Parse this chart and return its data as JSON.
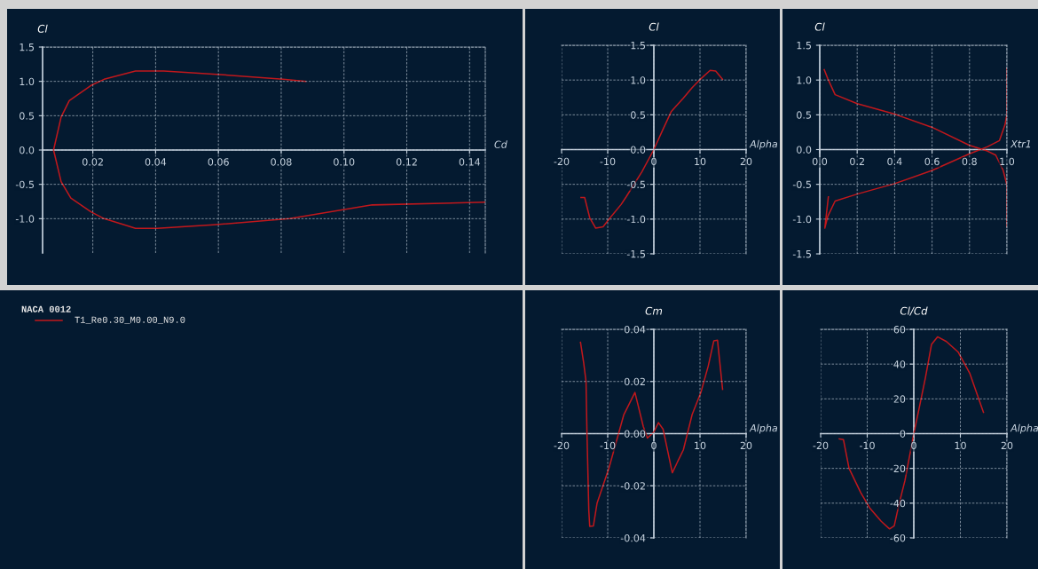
{
  "chart_data": [
    {
      "type": "line",
      "xlabel": "Cd",
      "ylabel": "Cl",
      "grid": true,
      "xlim": [
        0.004,
        0.145
      ],
      "ylim": [
        -1.5,
        1.5
      ],
      "xticks": [
        0.02,
        0.04,
        0.06,
        0.08,
        {
          "value": 0.1,
          "label": "0.10"
        },
        0.12,
        0.14
      ],
      "yticks": [
        {
          "value": -1,
          "label": "-1.0"
        },
        -0.5,
        {
          "value": 0,
          "label": "0.0"
        },
        0.5,
        {
          "value": 1,
          "label": "1.0"
        },
        1.5
      ],
      "series": [
        {
          "color": "#c0181c",
          "x": [
            0.145,
            0.109,
            0.0827,
            0.0584,
            0.0405,
            0.0336,
            0.0236,
            0.0194,
            0.013,
            0.0099,
            0.0075,
            0.0099,
            0.0125,
            0.0194,
            0.0236,
            0.0336,
            0.0426,
            0.0605,
            0.0806,
            0.0878
          ],
          "values": [
            -0.76,
            -0.8,
            -1.0,
            -1.09,
            -1.14,
            -1.14,
            -1.0,
            -0.9,
            -0.7,
            -0.46,
            0.0,
            0.48,
            0.72,
            0.94,
            1.03,
            1.15,
            1.15,
            1.1,
            1.03,
            1.0
          ]
        }
      ]
    },
    {
      "type": "line",
      "xlabel": "Alpha",
      "ylabel": "Cl",
      "grid": true,
      "xlim": [
        -20,
        20
      ],
      "ylim": [
        -1.5,
        1.5
      ],
      "xticks": [
        -20,
        -10,
        0,
        10,
        20
      ],
      "yticks": [
        -1.5,
        {
          "value": -1,
          "label": "-1.0"
        },
        -0.5,
        {
          "value": 0,
          "label": "0.0"
        },
        0.5,
        {
          "value": 1,
          "label": "1.0"
        },
        1.5
      ],
      "series": [
        {
          "color": "#c0181c",
          "x": [
            -15.8,
            -15.0,
            -13.9,
            -12.6,
            -11.0,
            -9.7,
            -7.1,
            -6.0,
            -2.6,
            0,
            1.9,
            3.8,
            6.4,
            8.3,
            9.9,
            12.2,
            13.4,
            14.9
          ],
          "values": [
            -0.69,
            -0.69,
            -0.98,
            -1.13,
            -1.11,
            -1.0,
            -0.79,
            -0.68,
            -0.32,
            0.0,
            0.28,
            0.55,
            0.74,
            0.89,
            1.0,
            1.14,
            1.13,
            1.01
          ]
        }
      ]
    },
    {
      "type": "line",
      "xlabel": "Xtr1",
      "ylabel": "Cl",
      "grid": true,
      "xlim": [
        0.0,
        1.0
      ],
      "ylim": [
        -1.5,
        1.5
      ],
      "xticks": [
        {
          "value": 0,
          "label": "0.0"
        },
        0.2,
        0.4,
        0.6,
        0.8,
        {
          "value": 1,
          "label": "1.0"
        }
      ],
      "yticks": [
        -1.5,
        {
          "value": -1,
          "label": "-1.0"
        },
        -0.5,
        {
          "value": 0,
          "label": "0.0"
        },
        0.5,
        {
          "value": 1,
          "label": "1.0"
        },
        1.5
      ],
      "series": [
        {
          "color": "#c0181c",
          "x": [
            0.024,
            0.043,
            0.082,
            0.2,
            0.4,
            0.6,
            0.8,
            0.895,
            0.94,
            0.98,
            1.0,
            1.0
          ],
          "values": [
            1.15,
            1.02,
            0.79,
            0.66,
            0.51,
            0.32,
            0.06,
            -0.02,
            -0.08,
            -0.3,
            -0.51,
            -1.11
          ]
        },
        {
          "color": "#c0181c",
          "x": [
            0.046,
            0.027,
            0.043,
            0.082,
            0.2,
            0.4,
            0.6,
            0.8,
            0.895,
            0.96,
            0.99,
            1.0,
            1.0
          ],
          "values": [
            -0.68,
            -1.13,
            -0.96,
            -0.74,
            -0.64,
            -0.49,
            -0.3,
            -0.06,
            0.04,
            0.13,
            0.36,
            0.51,
            1.17
          ]
        }
      ]
    },
    {
      "type": "other",
      "title": "NACA 0012",
      "annotations": [
        "T1_Re0.30_M0.00_N9.0"
      ]
    },
    {
      "type": "line",
      "xlabel": "Alpha",
      "ylabel": "Cm",
      "grid": true,
      "xlim": [
        -20,
        20
      ],
      "ylim": [
        -0.04,
        0.04
      ],
      "xticks": [
        -20,
        -10,
        0,
        10,
        20
      ],
      "yticks": [
        -0.04,
        -0.02,
        {
          "value": 0.0,
          "label": "0.00"
        },
        0.02,
        0.04
      ],
      "series": [
        {
          "color": "#c0181c",
          "x": [
            -15.9,
            -15.2,
            -14.7,
            -14.5,
            -14.1,
            -13.9,
            -13.1,
            -12.3,
            -9.7,
            -6.5,
            -4.1,
            -2.3,
            -1.4,
            0,
            1.0,
            2.0,
            4.0,
            6.4,
            8.3,
            10.2,
            11.8,
            13.0,
            13.8,
            14.9
          ],
          "values": [
            0.035,
            0.027,
            0.02,
            0.0006,
            -0.0294,
            -0.0356,
            -0.0354,
            -0.0266,
            -0.013,
            0.0073,
            0.0158,
            0.0028,
            -0.0017,
            0.0006,
            0.0042,
            0.0017,
            -0.015,
            -0.0062,
            0.0073,
            0.0158,
            0.026,
            0.0356,
            0.0358,
            0.017
          ]
        }
      ]
    },
    {
      "type": "line",
      "xlabel": "Alpha",
      "ylabel": "Cl/Cd",
      "grid": true,
      "xlim": [
        -20,
        20
      ],
      "ylim": [
        -60,
        60
      ],
      "xticks": [
        -20,
        -10,
        0,
        10,
        20
      ],
      "yticks": [
        -60,
        -40,
        -20,
        0,
        20,
        40,
        60
      ],
      "series": [
        {
          "color": "#c0181c",
          "x": [
            -16.0,
            -15.1,
            -13.9,
            -11.4,
            -9.5,
            -7.0,
            -5.2,
            -4.2,
            -3.2,
            -1.9,
            0,
            1.3,
            2.5,
            3.8,
            5.1,
            7.0,
            9.5,
            12.0,
            13.6,
            14.96
          ],
          "values": [
            -3.0,
            -3.5,
            -20,
            -33.9,
            -42.6,
            -50.4,
            -54.8,
            -53.0,
            -40.9,
            -27,
            0,
            16.5,
            32.2,
            51.3,
            55.7,
            53,
            47,
            34.8,
            22.6,
            12.2
          ]
        }
      ]
    }
  ]
}
